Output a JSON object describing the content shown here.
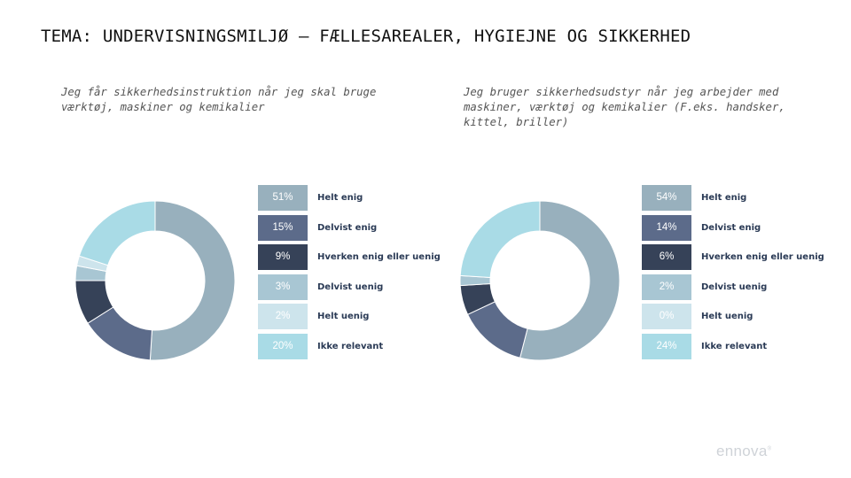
{
  "title": "TEMA: UNDERVISNINGSMILJØ – FÆLLESAREALER, HYGIEJNE OG SIKKERHED",
  "logo": "ennova",
  "colors": {
    "Helt enig": "#98b0bd",
    "Delvist enig": "#5c6b8a",
    "Hverken enig eller uenig": "#364258",
    "Delvist uenig": "#a8c6d3",
    "Helt uenig": "#cde4ec",
    "Ikke relevant": "#a9dbe6"
  },
  "chart_data": [
    {
      "type": "pie",
      "title": "Jeg får sikkerhedsinstruktion når jeg skal bruge værktøj, maskiner og kemikalier",
      "categories": [
        "Helt enig",
        "Delvist enig",
        "Hverken enig eller uenig",
        "Delvist uenig",
        "Helt uenig",
        "Ikke relevant"
      ],
      "values": [
        51,
        15,
        9,
        3,
        2,
        20
      ],
      "labels": [
        "51%",
        "15%",
        "9%",
        "3%",
        "2%",
        "20%"
      ],
      "legend": "right"
    },
    {
      "type": "pie",
      "title": "Jeg bruger sikkerhedsudstyr når jeg arbejder med maskiner, værktøj og kemikalier (F.eks. handsker, kittel, briller)",
      "categories": [
        "Helt enig",
        "Delvist enig",
        "Hverken enig eller uenig",
        "Delvist uenig",
        "Helt uenig",
        "Ikke relevant"
      ],
      "values": [
        54,
        14,
        6,
        2,
        0,
        24
      ],
      "labels": [
        "54%",
        "14%",
        "6%",
        "2%",
        "0%",
        "24%"
      ],
      "legend": "right"
    }
  ]
}
